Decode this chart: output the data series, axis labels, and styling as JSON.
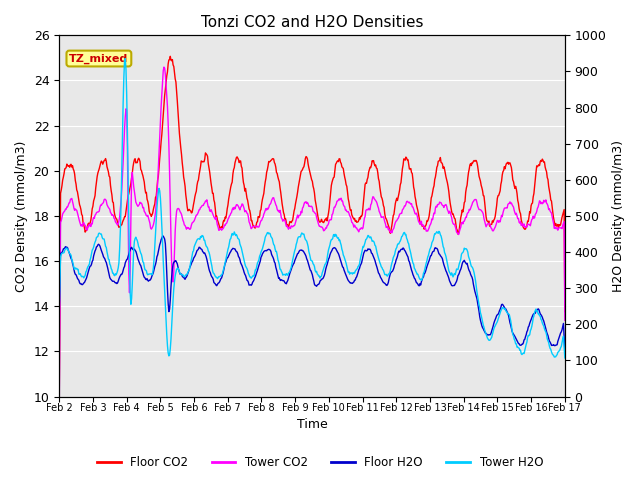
{
  "title": "Tonzi CO2 and H2O Densities",
  "xlabel": "Time",
  "ylabel_left": "CO2 Density (mmol/m3)",
  "ylabel_right": "H2O Density (mmol/m3)",
  "ylim_left": [
    10,
    26
  ],
  "ylim_right": [
    0,
    1000
  ],
  "yticks_left": [
    10,
    12,
    14,
    16,
    18,
    20,
    22,
    24,
    26
  ],
  "yticks_right": [
    0,
    100,
    200,
    300,
    400,
    500,
    600,
    700,
    800,
    900,
    1000
  ],
  "annotation_text": "TZ_mixed",
  "annotation_color": "#cc0000",
  "annotation_bg": "#ffff99",
  "annotation_border": "#bbaa00",
  "colors": {
    "floor_co2": "#ff0000",
    "tower_co2": "#ff00ff",
    "floor_h2o": "#0000cc",
    "tower_h2o": "#00ccff"
  },
  "legend_labels": [
    "Floor CO2",
    "Tower CO2",
    "Floor H2O",
    "Tower H2O"
  ],
  "bg_color": "#e8e8e8",
  "fig_bg": "#ffffff",
  "n_points": 720,
  "num_days": 15
}
